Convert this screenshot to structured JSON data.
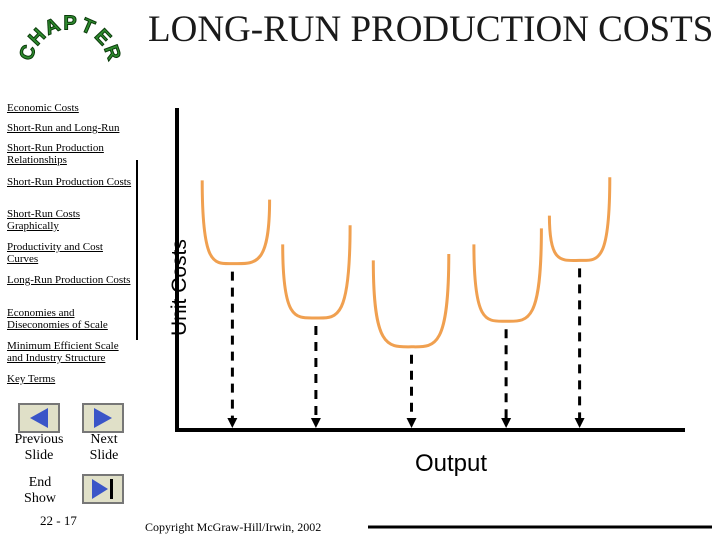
{
  "title": "LONG-RUN PRODUCTION COSTS",
  "logo": {
    "letters": [
      "C",
      "H",
      "A",
      "P",
      "T",
      "E",
      "R"
    ],
    "color": "#2e8b2e"
  },
  "sidebar": {
    "items": [
      "Economic Costs",
      "Short-Run and Long-Run",
      "Short-Run Production Relationships",
      "Short-Run Production Costs",
      "Short-Run Costs Graphically",
      "Productivity and Cost Curves",
      "Long-Run Production Costs",
      "Economies and Diseconomies of Scale",
      "Minimum Efficient Scale and Industry Structure",
      "Key Terms"
    ]
  },
  "nav": {
    "previous": "Previous Slide",
    "next": "Next Slide",
    "end": "End Show",
    "page": "22 - 17",
    "button_color": "#e0e0c8",
    "arrow_color": "#3a55c8"
  },
  "chart_data": {
    "type": "line",
    "title": "",
    "xlabel": "Output",
    "ylabel": "Unit Costs",
    "curve_color": "#f0a050",
    "series": [
      {
        "name": "",
        "x": [
          0.25,
          0.92
        ],
        "y": [
          0.78,
          0.72
        ],
        "min": [
          0.55,
          0.52
        ]
      },
      {
        "name": "",
        "x": [
          1.05,
          1.72
        ],
        "y": [
          0.58,
          0.64
        ],
        "min": [
          1.38,
          0.35
        ]
      },
      {
        "name": "",
        "x": [
          1.95,
          2.7
        ],
        "y": [
          0.53,
          0.55
        ],
        "min": [
          2.33,
          0.26
        ]
      },
      {
        "name": "",
        "x": [
          2.95,
          3.62
        ],
        "y": [
          0.58,
          0.63
        ],
        "min": [
          3.27,
          0.34
        ]
      },
      {
        "name": "",
        "x": [
          3.7,
          4.3
        ],
        "y": [
          0.67,
          0.79
        ],
        "min": [
          4.0,
          0.53
        ]
      }
    ],
    "dashed_drop_lines_x": [
      0.55,
      1.38,
      2.33,
      3.27,
      4.0
    ]
  },
  "footer": {
    "copyright": "Copyright McGraw-Hill/Irwin, 2002"
  }
}
